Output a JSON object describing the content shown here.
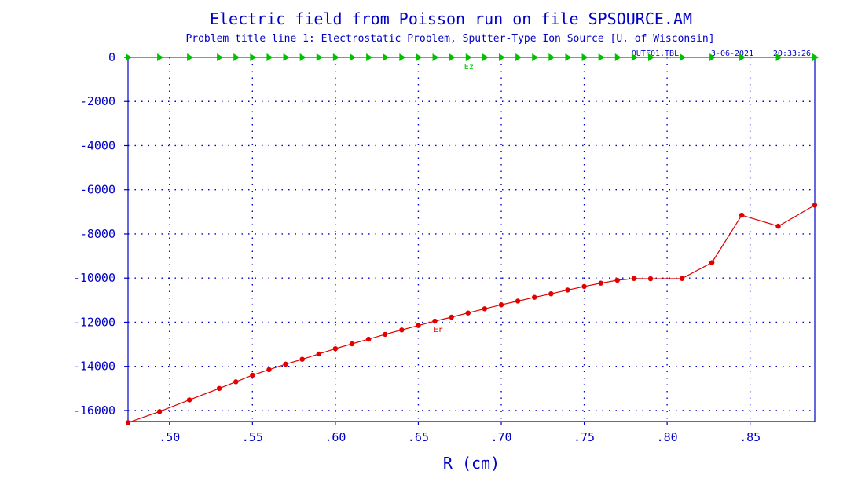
{
  "chart_data": {
    "type": "line",
    "title": "Electric field from Poisson run on file SPSOURCE.AM",
    "subtitle": "Problem title line 1: Electrostatic Problem, Sputter-Type Ion Source [U. of Wisconsin]",
    "info": {
      "file": "OUTF01.TBL",
      "date": "3-06-2021",
      "time": "20:33:26"
    },
    "xlabel": "R (cm)",
    "ylabel": "",
    "xlim": [
      0.475,
      0.889
    ],
    "ylim": [
      -16500,
      0
    ],
    "x_ticks": [
      0.5,
      0.55,
      0.6,
      0.65,
      0.7,
      0.75,
      0.8,
      0.85
    ],
    "x_tick_labels": [
      ".50",
      ".55",
      ".60",
      ".65",
      ".70",
      ".75",
      ".80",
      ".85"
    ],
    "y_ticks": [
      0,
      -2000,
      -4000,
      -6000,
      -8000,
      -10000,
      -12000,
      -14000,
      -16000
    ],
    "y_tick_labels": [
      "0",
      "-2000",
      "-4000",
      "-6000",
      "-8000",
      "-10000",
      "-12000",
      "-14000",
      "-16000"
    ],
    "grid": true,
    "series": [
      {
        "name": "Ez",
        "color": "#00c000",
        "marker": "triangle-right",
        "label_x": 0.6805,
        "label_y": -400,
        "x": [
          0.475,
          0.494,
          0.512,
          0.53,
          0.54,
          0.55,
          0.56,
          0.57,
          0.58,
          0.59,
          0.6,
          0.61,
          0.62,
          0.63,
          0.64,
          0.65,
          0.66,
          0.67,
          0.68,
          0.69,
          0.7,
          0.71,
          0.72,
          0.73,
          0.74,
          0.75,
          0.76,
          0.77,
          0.78,
          0.79,
          0.809,
          0.827,
          0.845,
          0.867,
          0.889
        ],
        "y": [
          0,
          0,
          0,
          0,
          0,
          0,
          0,
          0,
          0,
          0,
          0,
          0,
          0,
          0,
          0,
          0,
          0,
          0,
          0,
          0,
          0,
          0,
          0,
          0,
          0,
          0,
          0,
          0,
          0,
          0,
          0,
          0,
          0,
          0,
          0
        ]
      },
      {
        "name": "Er",
        "color": "#e00000",
        "marker": "circle",
        "label_x": 0.662,
        "label_y": -12300,
        "x": [
          0.475,
          0.494,
          0.512,
          0.53,
          0.54,
          0.55,
          0.56,
          0.57,
          0.58,
          0.59,
          0.6,
          0.61,
          0.62,
          0.63,
          0.64,
          0.65,
          0.66,
          0.67,
          0.68,
          0.69,
          0.7,
          0.71,
          0.72,
          0.73,
          0.74,
          0.75,
          0.76,
          0.77,
          0.78,
          0.79,
          0.809,
          0.827,
          0.845,
          0.867,
          0.889
        ],
        "y": [
          -16550,
          -16050,
          -15520,
          -15000,
          -14700,
          -14400,
          -14150,
          -13900,
          -13680,
          -13440,
          -13200,
          -12980,
          -12770,
          -12550,
          -12350,
          -12150,
          -11950,
          -11770,
          -11580,
          -11390,
          -11210,
          -11040,
          -10870,
          -10710,
          -10540,
          -10380,
          -10230,
          -10100,
          -10020,
          -10030,
          -10020,
          -9300,
          -7150,
          -7650,
          -6700
        ]
      }
    ]
  }
}
